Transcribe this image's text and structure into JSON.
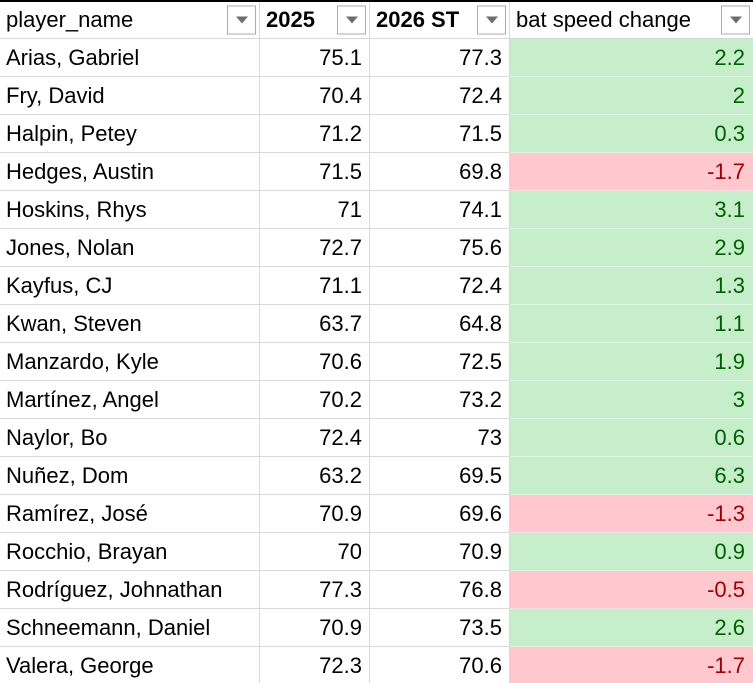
{
  "header": {
    "columns": [
      {
        "id": "player_name",
        "label": "player_name",
        "bold": false
      },
      {
        "id": "y2025",
        "label": "2025",
        "bold": true
      },
      {
        "id": "y2026",
        "label": "2026 ST",
        "bold": true
      },
      {
        "id": "change",
        "label": "bat speed change",
        "bold": false
      }
    ]
  },
  "rows": [
    {
      "player_name": "Arias, Gabriel",
      "y2025": "75.1",
      "y2026": "77.3",
      "change": "2.2",
      "trend": "positive"
    },
    {
      "player_name": "Fry, David",
      "y2025": "70.4",
      "y2026": "72.4",
      "change": "2",
      "trend": "positive"
    },
    {
      "player_name": "Halpin, Petey",
      "y2025": "71.2",
      "y2026": "71.5",
      "change": "0.3",
      "trend": "positive"
    },
    {
      "player_name": "Hedges, Austin",
      "y2025": "71.5",
      "y2026": "69.8",
      "change": "-1.7",
      "trend": "negative"
    },
    {
      "player_name": "Hoskins, Rhys",
      "y2025": "71",
      "y2026": "74.1",
      "change": "3.1",
      "trend": "positive"
    },
    {
      "player_name": "Jones, Nolan",
      "y2025": "72.7",
      "y2026": "75.6",
      "change": "2.9",
      "trend": "positive"
    },
    {
      "player_name": "Kayfus, CJ",
      "y2025": "71.1",
      "y2026": "72.4",
      "change": "1.3",
      "trend": "positive"
    },
    {
      "player_name": "Kwan, Steven",
      "y2025": "63.7",
      "y2026": "64.8",
      "change": "1.1",
      "trend": "positive"
    },
    {
      "player_name": "Manzardo, Kyle",
      "y2025": "70.6",
      "y2026": "72.5",
      "change": "1.9",
      "trend": "positive"
    },
    {
      "player_name": "Martínez, Angel",
      "y2025": "70.2",
      "y2026": "73.2",
      "change": "3",
      "trend": "positive"
    },
    {
      "player_name": "Naylor, Bo",
      "y2025": "72.4",
      "y2026": "73",
      "change": "0.6",
      "trend": "positive"
    },
    {
      "player_name": "Nuñez, Dom",
      "y2025": "63.2",
      "y2026": "69.5",
      "change": "6.3",
      "trend": "positive"
    },
    {
      "player_name": "Ramírez, José",
      "y2025": "70.9",
      "y2026": "69.6",
      "change": "-1.3",
      "trend": "negative"
    },
    {
      "player_name": "Rocchio, Brayan",
      "y2025": "70",
      "y2026": "70.9",
      "change": "0.9",
      "trend": "positive"
    },
    {
      "player_name": "Rodríguez, Johnathan",
      "y2025": "77.3",
      "y2026": "76.8",
      "change": "-0.5",
      "trend": "negative"
    },
    {
      "player_name": "Schneemann, Daniel",
      "y2025": "70.9",
      "y2026": "73.5",
      "change": "2.6",
      "trend": "positive"
    },
    {
      "player_name": "Valera, George",
      "y2025": "72.3",
      "y2026": "70.6",
      "change": "-1.7",
      "trend": "negative"
    }
  ],
  "icons": {
    "filter_dropdown": "chevron-down-icon"
  },
  "colors": {
    "positive_bg": "#C7EECB",
    "positive_text": "#006100",
    "negative_bg": "#FFC7CE",
    "negative_text": "#9C0006",
    "gridline": "#D9D9D9",
    "top_border": "#000000"
  }
}
